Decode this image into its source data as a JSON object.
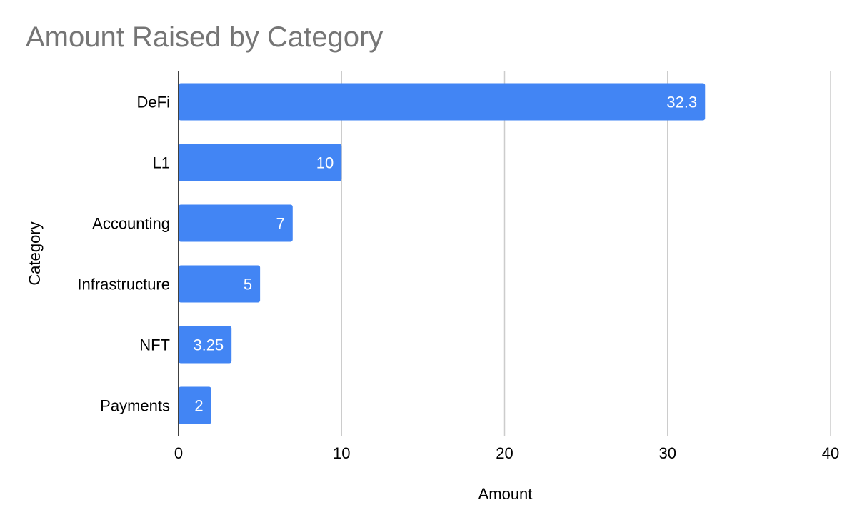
{
  "chart_data": {
    "type": "bar",
    "orientation": "horizontal",
    "title": "Amount Raised by Category",
    "xlabel": "Amount",
    "ylabel": "Category",
    "categories": [
      "DeFi",
      "L1",
      "Accounting",
      "Infrastructure",
      "NFT",
      "Payments"
    ],
    "values": [
      32.3,
      10,
      7,
      5,
      3.25,
      2
    ],
    "data_labels": [
      "32.3",
      "10",
      "7",
      "5",
      "3.25",
      "2"
    ],
    "xlim": [
      0,
      40
    ],
    "xticks": [
      0,
      10,
      20,
      30,
      40
    ],
    "grid": true,
    "legend": "none",
    "colors": {
      "bar": "#4285f4",
      "grid": "#cccccc",
      "axis": "#000000",
      "title": "#757575"
    }
  }
}
